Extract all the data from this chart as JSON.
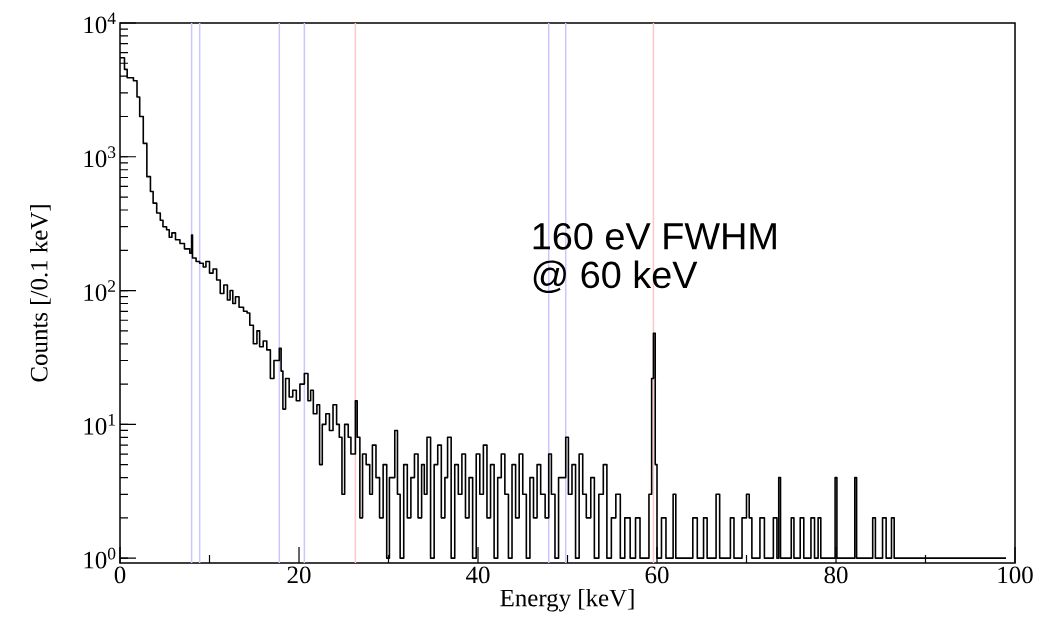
{
  "chart_data": {
    "type": "step",
    "xlabel": "Energy [keV]",
    "ylabel": "Counts [/0.1 keV]",
    "log": "y",
    "grid": false,
    "marker": "none",
    "line_style": "solid",
    "xlim": [
      0,
      100
    ],
    "ylim": [
      0.92,
      10000
    ],
    "xticks": [
      0,
      20,
      40,
      60,
      80,
      100
    ],
    "yticks": [
      {
        "value": 1,
        "label": "10$^{0}$"
      },
      {
        "value": 10,
        "label": "10$^{1}$"
      },
      {
        "value": 100,
        "label": "10$^{2}$"
      },
      {
        "value": 1000,
        "label": "10$^{3}$"
      },
      {
        "value": 10000,
        "label": "10$^{4}$"
      }
    ],
    "annotations": [
      "160 eV FWHM",
      "@ 60 keV"
    ],
    "ref_lines": [
      {
        "axis": "x",
        "value": 8.0,
        "color": "#c8c8ff"
      },
      {
        "axis": "x",
        "value": 8.9,
        "color": "#c8c8ff"
      },
      {
        "axis": "x",
        "value": 17.8,
        "color": "#c8c8ff"
      },
      {
        "axis": "x",
        "value": 20.6,
        "color": "#c8c8ff"
      },
      {
        "axis": "x",
        "value": 26.3,
        "color": "#ffc8c8"
      },
      {
        "axis": "x",
        "value": 47.9,
        "color": "#c8c8ff"
      },
      {
        "axis": "x",
        "value": 49.8,
        "color": "#c8c8ff"
      },
      {
        "axis": "x",
        "value": 59.6,
        "color": "#ffc8c8"
      }
    ],
    "series": [
      {
        "color": "#000000",
        "x": [
          0,
          0.5,
          0.8,
          1.5,
          1.9,
          2.2,
          2.6,
          3.0,
          3.4,
          3.7,
          4.1,
          4.5,
          4.8,
          5.2,
          5.5,
          5.8,
          6.2,
          6.7,
          7.2,
          7.8,
          8.0,
          8.1,
          8.5,
          8.9,
          9.3,
          9.6,
          10.0,
          10.4,
          10.8,
          11.2,
          11.6,
          12.0,
          12.3,
          12.6,
          12.9,
          13.3,
          13.8,
          14.2,
          14.5,
          14.9,
          15.3,
          15.6,
          16.0,
          16.4,
          16.8,
          17.2,
          17.8,
          18.0,
          18.2,
          18.5,
          18.9,
          19.3,
          19.7,
          20.1,
          20.6,
          21.0,
          21.3,
          21.6,
          22.0,
          22.3,
          22.6,
          23.0,
          23.4,
          23.8,
          24.2,
          24.5,
          24.8,
          25.1,
          25.5,
          25.8,
          26.3,
          26.5,
          26.8,
          27.1,
          27.5,
          27.9,
          28.2,
          28.6,
          29.0,
          29.4,
          29.8,
          30.1,
          30.7,
          31.0,
          31.3,
          31.7,
          32.1,
          32.5,
          32.9,
          33.3,
          33.7,
          34.0,
          34.3,
          34.7,
          35.1,
          35.5,
          35.9,
          36.3,
          36.6,
          37.0,
          37.4,
          37.8,
          38.2,
          38.6,
          39.0,
          39.4,
          39.8,
          40.2,
          40.6,
          41.0,
          41.4,
          41.8,
          42.2,
          42.6,
          43.0,
          43.4,
          43.8,
          44.2,
          44.6,
          45.0,
          45.4,
          45.8,
          46.2,
          46.6,
          47.0,
          47.5,
          47.9,
          48.2,
          48.6,
          49.0,
          49.8,
          50.1,
          50.5,
          50.9,
          51.3,
          51.7,
          52.1,
          52.6,
          53.0,
          53.5,
          54.0,
          54.4,
          54.9,
          55.4,
          55.9,
          56.4,
          57.0,
          57.6,
          58.1,
          58.6,
          59.1,
          59.4,
          59.6,
          59.8,
          60.0,
          60.5,
          61.0,
          61.8,
          62.1,
          63.0,
          64.0,
          64.5,
          65.2,
          65.6,
          66.6,
          67.0,
          68.2,
          68.6,
          69.5,
          70.0,
          70.3,
          70.6,
          71.5,
          72.0,
          73.0,
          73.4,
          73.6,
          73.8,
          75.0,
          75.3,
          76.0,
          76.4,
          77.2,
          77.6,
          78.0,
          78.3,
          79.9,
          80.1,
          82.1,
          82.3,
          84.1,
          84.4,
          85.2,
          85.6,
          86.2,
          86.5,
          87.0,
          99.0
        ],
        "values": [
          5500,
          4500,
          3900,
          3700,
          2800,
          2000,
          1260,
          710,
          550,
          450,
          380,
          335,
          300,
          285,
          250,
          270,
          240,
          225,
          205,
          190,
          260,
          175,
          165,
          160,
          150,
          165,
          135,
          145,
          120,
          95,
          110,
          85,
          100,
          80,
          90,
          75,
          70,
          68,
          55,
          40,
          50,
          38,
          42,
          36,
          22,
          30,
          37,
          25,
          13,
          22,
          16,
          18,
          15,
          20,
          24,
          15,
          18,
          12,
          14,
          5,
          10,
          12,
          9,
          14,
          10,
          8,
          3,
          10,
          8,
          6,
          15,
          8,
          2,
          6,
          5,
          3,
          7,
          4,
          2,
          5,
          1,
          4,
          9,
          3,
          1,
          5,
          2,
          4,
          6,
          2,
          5,
          3,
          8,
          1,
          5,
          7,
          2,
          4,
          8,
          1,
          5,
          3,
          6,
          2,
          4,
          1,
          6,
          3,
          7,
          2,
          5,
          1,
          4,
          6,
          3,
          1,
          5,
          2,
          6,
          3,
          1,
          4,
          2,
          5,
          3,
          2,
          6,
          3,
          1,
          4,
          8,
          3,
          5,
          1,
          6,
          3,
          2,
          4,
          1,
          3,
          5,
          1,
          2,
          3,
          1,
          2,
          1,
          2,
          1,
          1,
          3,
          22,
          48,
          5,
          1,
          2,
          1,
          3,
          1,
          1,
          2,
          1,
          2,
          1,
          3,
          1,
          2,
          1,
          2,
          3,
          2,
          1,
          2,
          1,
          2,
          1,
          4,
          1,
          2,
          1,
          2,
          1,
          2,
          1,
          2,
          1,
          4,
          1,
          4,
          1,
          2,
          1,
          2,
          1,
          2,
          1,
          1,
          1
        ]
      }
    ]
  }
}
